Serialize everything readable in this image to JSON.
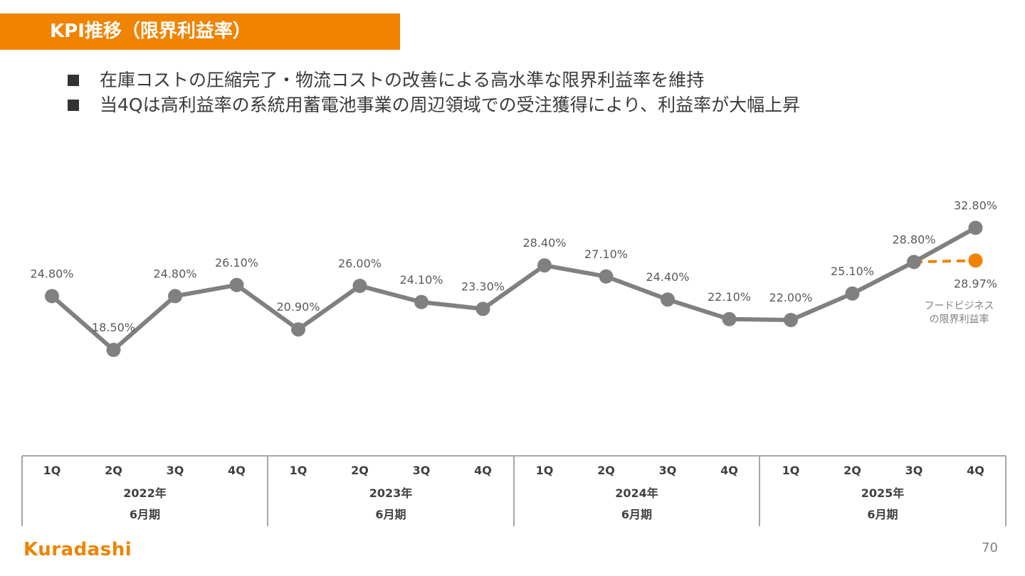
{
  "slide": {
    "title": "KPI推移（限界利益率）",
    "bullets": [
      "在庫コストの圧縮完了・物流コストの改善による高水準な限界利益率を維持",
      "当4Qは高利益率の系統用蓄電池事業の周辺領域での受注獲得により、利益率が大幅上昇"
    ],
    "logo_text": "Kuradashi",
    "page_number": "70"
  },
  "colors": {
    "accent": "#f08300",
    "series_main": "#808080",
    "series_food": "#f08300",
    "axis_border": "#a6a6a6"
  },
  "chart_data": {
    "type": "line",
    "categories": [
      "1Q",
      "2Q",
      "3Q",
      "4Q",
      "1Q",
      "2Q",
      "3Q",
      "4Q",
      "1Q",
      "2Q",
      "3Q",
      "4Q",
      "1Q",
      "2Q",
      "3Q",
      "4Q"
    ],
    "groups": [
      {
        "year": "2022年",
        "period": "6月期"
      },
      {
        "year": "2023年",
        "period": "6月期"
      },
      {
        "year": "2024年",
        "period": "6月期"
      },
      {
        "year": "2025年",
        "period": "6月期"
      }
    ],
    "series": [
      {
        "values": [
          24.8,
          18.5,
          24.8,
          26.1,
          20.9,
          26.0,
          24.1,
          23.3,
          28.4,
          27.1,
          24.4,
          22.1,
          22.0,
          25.1,
          28.8,
          32.8
        ],
        "labels": [
          "24.80%",
          "18.50%",
          "24.80%",
          "26.10%",
          "20.90%",
          "26.00%",
          "24.10%",
          "23.30%",
          "28.40%",
          "27.10%",
          "24.40%",
          "22.10%",
          "22.00%",
          "25.10%",
          "28.80%",
          "32.80%"
        ]
      },
      {
        "name_lines": [
          "フードビジネス",
          "の限界利益率"
        ],
        "style": "dashed",
        "values": [
          null,
          null,
          null,
          null,
          null,
          null,
          null,
          null,
          null,
          null,
          null,
          null,
          null,
          null,
          28.8,
          28.97
        ],
        "labels": [
          "28.97%"
        ]
      }
    ],
    "title": "",
    "xlabel": "",
    "ylabel": "",
    "ylim": [
      0,
      36
    ],
    "grid": false,
    "legend": "none"
  }
}
